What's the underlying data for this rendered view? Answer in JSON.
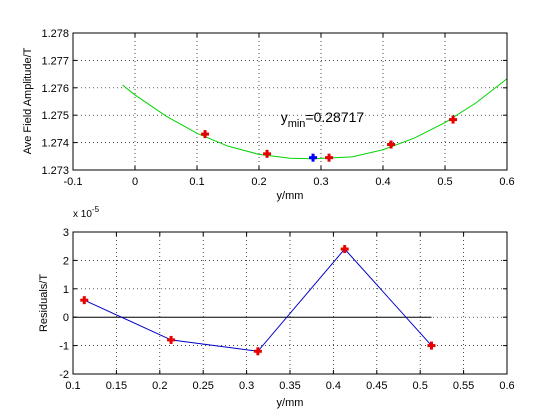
{
  "chart_data": [
    {
      "type": "scatter",
      "xlabel": "y/mm",
      "ylabel": "Ave Field Amplitude/T",
      "xlim": [
        -0.1,
        0.6
      ],
      "ylim": [
        1.273,
        1.278
      ],
      "xticks": [
        "-0.1",
        "0",
        "0.1",
        "0.2",
        "0.3",
        "0.4",
        "0.5",
        "0.6"
      ],
      "yticks": [
        "1.273",
        "1.274",
        "1.275",
        "1.276",
        "1.277",
        "1.278"
      ],
      "grid": true,
      "annotation": {
        "base": "y",
        "subscript": "min",
        "text": "=0.28717",
        "x": 0.235,
        "y": 1.27475
      },
      "series": [
        {
          "kind": "fit",
          "color": "#00d400",
          "x": [
            -0.02,
            0.0,
            0.05,
            0.1,
            0.15,
            0.2,
            0.25,
            0.28717,
            0.35,
            0.4,
            0.45,
            0.5,
            0.55,
            0.6
          ],
          "y": [
            1.2761,
            1.27574,
            1.27497,
            1.27434,
            1.27387,
            1.27357,
            1.27343,
            1.27341,
            1.27348,
            1.27374,
            1.27416,
            1.27473,
            1.27545,
            1.27633
          ]
        },
        {
          "kind": "measured",
          "color": "#e60000",
          "marker": "plus",
          "x": [
            0.113,
            0.213,
            0.313,
            0.413,
            0.513
          ],
          "y": [
            1.27431,
            1.27359,
            1.27345,
            1.27393,
            1.27484
          ]
        },
        {
          "kind": "minimum",
          "color": "#0000ff",
          "marker": "plus",
          "x": [
            0.28717
          ],
          "y": [
            1.27345
          ]
        }
      ]
    },
    {
      "type": "line",
      "xlabel": "y/mm",
      "ylabel": "Residuals/T",
      "exponent_base": "x 10",
      "exponent_power": "-5",
      "xlim": [
        0.1,
        0.6
      ],
      "ylim": [
        -2,
        3
      ],
      "xticks": [
        "0.1",
        "0.15",
        "0.2",
        "0.25",
        "0.3",
        "0.35",
        "0.4",
        "0.45",
        "0.5",
        "0.55",
        "0.6"
      ],
      "yticks": [
        "-2",
        "-1",
        "0",
        "1",
        "2",
        "3"
      ],
      "grid": true,
      "zero_line": {
        "x": [
          0.1,
          0.513
        ],
        "y": [
          0,
          0
        ],
        "color": "#000000"
      },
      "series": [
        {
          "kind": "residuals",
          "line_color": "#0000c8",
          "marker_color": "#e60000",
          "marker": "plus",
          "x": [
            0.113,
            0.213,
            0.313,
            0.413,
            0.513
          ],
          "y": [
            0.6,
            -0.8,
            -1.2,
            2.4,
            -1.0
          ]
        }
      ]
    }
  ]
}
